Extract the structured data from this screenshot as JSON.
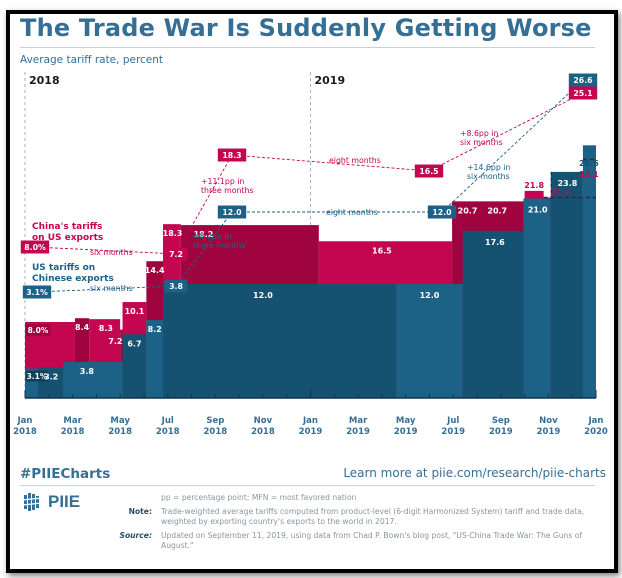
{
  "header": {
    "title": "The Trade War Is Suddenly Getting Worse",
    "subtitle": "Average tariff rate, percent"
  },
  "colors": {
    "blue": "#1c6286",
    "blue_dark": "#155272",
    "magenta": "#c4054f",
    "magenta_dark": "#a0043f",
    "title_blue": "#356f96"
  },
  "chart_data": {
    "type": "area",
    "title": "The Trade War Is Suddenly Getting Worse",
    "ylabel": "Average tariff rate, percent",
    "xlabel": "",
    "x_ticks": [
      "Jan 2018",
      "Mar 2018",
      "May 2018",
      "Jul 2018",
      "Sep 2018",
      "Nov 2018",
      "Jan 2019",
      "Mar 2019",
      "May 2019",
      "Jul 2019",
      "Sep 2019",
      "Nov 2019",
      "Jan 2020"
    ],
    "x_tick_lines": [
      [
        "Jan",
        "2018"
      ],
      [
        "Mar",
        "2018"
      ],
      [
        "May",
        "2018"
      ],
      [
        "Jul",
        "2018"
      ],
      [
        "Sep",
        "2018"
      ],
      [
        "Nov",
        "2018"
      ],
      [
        "Jan",
        "2019"
      ],
      [
        "Mar",
        "2019"
      ],
      [
        "May",
        "2019"
      ],
      [
        "Jul",
        "2019"
      ],
      [
        "Sep",
        "2019"
      ],
      [
        "Nov",
        "2019"
      ],
      [
        "Jan",
        "2020"
      ]
    ],
    "x_range_months": [
      0,
      24
    ],
    "ylim": [
      0,
      28
    ],
    "year_markers": [
      {
        "label": "2018",
        "month": 0
      },
      {
        "label": "2019",
        "month": 12
      }
    ],
    "series": [
      {
        "name": "US tariffs on Chinese exports",
        "color": "#1c6286",
        "steps": [
          {
            "start": 0,
            "end": 1.1,
            "value": 3.1,
            "label": "3.1%"
          },
          {
            "start": 1.1,
            "end": 3.2,
            "value": 3.2,
            "label": "3.2"
          },
          {
            "start": 3.2,
            "end": 8.2,
            "value": 3.8,
            "label": "3.8"
          },
          {
            "start": 8.2,
            "end": 10.2,
            "value": 6.7,
            "label": "6.7"
          },
          {
            "start": 10.2,
            "end": 11.6,
            "value": 8.2,
            "label": "8.2"
          },
          {
            "start": 11.6,
            "end": 31.2,
            "value": 12.0,
            "label": "12.0"
          },
          {
            "start": 31.2,
            "end": 36.8,
            "value": 12.0,
            "label": "12.0"
          },
          {
            "start": 36.8,
            "end": 41.9,
            "value": 17.6,
            "label": "17.6"
          },
          {
            "start": 41.9,
            "end": 44.2,
            "value": 21.0,
            "label": "21.0"
          },
          {
            "start": 44.2,
            "end": 46.9,
            "value": 23.8,
            "label": "23.8"
          },
          {
            "start": 46.9,
            "end": 48,
            "value": 26.6,
            "label": "26.6"
          }
        ]
      },
      {
        "name": "China's tariffs on US exports",
        "color": "#c4054f",
        "steps": [
          {
            "start": 0,
            "end": 4.2,
            "value": 8.0,
            "label": "8.0%"
          },
          {
            "start": 4.2,
            "end": 5.4,
            "value": 8.4,
            "label": "8.4"
          },
          {
            "start": 5.4,
            "end": 8.0,
            "value": 8.3,
            "label": "8.3"
          },
          {
            "start": 8.0,
            "end": 8.2,
            "value": 7.2,
            "label": "7.2"
          },
          {
            "start": 8.2,
            "end": 10.2,
            "value": 10.1,
            "label": "10.1"
          },
          {
            "start": 10.2,
            "end": 11.6,
            "value": 14.4,
            "label": "14.4"
          },
          {
            "start": 11.6,
            "end": 13.1,
            "value": 18.3,
            "label": "18.3"
          },
          {
            "start": 13.1,
            "end": 24.7,
            "value": 18.2,
            "label": "18.2"
          },
          {
            "start": 24.7,
            "end": 35.9,
            "value": 16.5,
            "label": "16.5"
          },
          {
            "start": 35.9,
            "end": 42.0,
            "value": 20.7,
            "label": "20.7"
          },
          {
            "start": 42.0,
            "end": 43.6,
            "value": 21.8,
            "label": "21.8"
          },
          {
            "start": 43.6,
            "end": 48,
            "value": 21.1,
            "label": "21.1"
          },
          {
            "start": 46.9,
            "end": 48,
            "value": 25.1,
            "label": "25.1"
          }
        ]
      }
    ],
    "series_labels": {
      "china": [
        "China's tariffs",
        "on US exports"
      ],
      "us": [
        "US tariffs on",
        "Chinese exports"
      ]
    },
    "annotations": {
      "china_points": [
        {
          "label": "8.0%",
          "month": 0,
          "value": 8.0
        },
        {
          "label": "7.2",
          "month": 7,
          "value": 7.2
        },
        {
          "label": "18.3",
          "month": 10,
          "value": 18.3
        },
        {
          "label": "16.5",
          "month": 18,
          "value": 16.5
        },
        {
          "label": "25.1",
          "month": 24,
          "value": 25.1
        }
      ],
      "us_points": [
        {
          "label": "3.1%",
          "month": 0,
          "value": 3.1
        },
        {
          "label": "3.8",
          "month": 7,
          "value": 3.8
        },
        {
          "label": "12.0",
          "month": 10,
          "value": 12.0
        },
        {
          "label": "12.0",
          "month": 18,
          "value": 12.0
        },
        {
          "label": "26.6",
          "month": 24,
          "value": 26.6
        }
      ],
      "china_segments": [
        "six months",
        "+11.1pp in|three months",
        "eight months",
        "+8.6pp in|six months"
      ],
      "us_segments": [
        "six months",
        "+8.2pp in|three months",
        "eight months",
        "+14.6pp in|six months"
      ],
      "final_labels": {
        "us": "26.6",
        "china": "25.1"
      }
    }
  },
  "footer": {
    "hashtag": "#PIIECharts",
    "learn_more": "Learn more at piie.com/research/piie-charts",
    "logo_text": "PIIE",
    "abbrev": "pp = percentage point; MFN = most favored nation",
    "note_label": "Note:",
    "note_text": "Trade-weighted average tariffs computed from product-level (6-digit Harmonized System) tariff and trade data, weighted by exporting country's exports to the world in 2017.",
    "source_label": "Source:",
    "source_text": "Updated on September 11, 2019, using data from Chad P. Bown's blog post, \"US-China Trade War: The Guns of August.\""
  }
}
